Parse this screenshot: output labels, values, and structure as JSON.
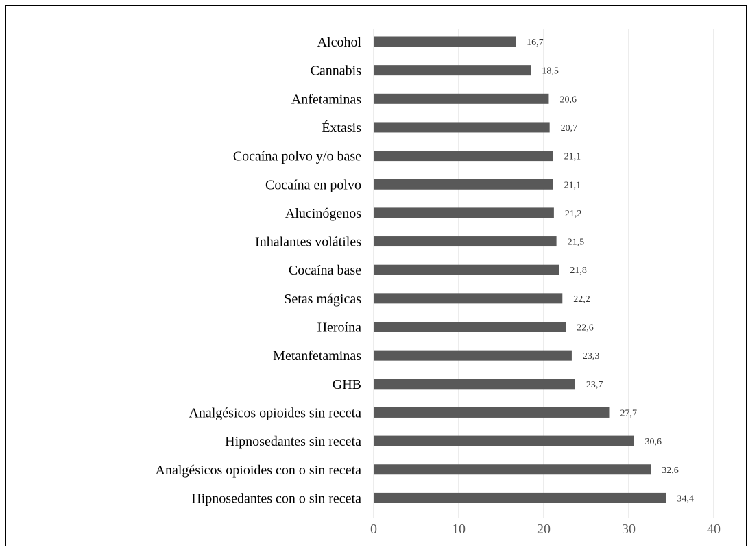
{
  "chart_data": {
    "type": "bar",
    "orientation": "horizontal",
    "title": "",
    "xlabel": "",
    "ylabel": "",
    "xlim": [
      0,
      40
    ],
    "x_ticks": [
      "0",
      "10",
      "20",
      "30",
      "40"
    ],
    "grid": "vertical",
    "bar_color": "#595959",
    "categories": [
      "Alcohol",
      "Cannabis",
      "Anfetaminas",
      "Éxtasis",
      "Cocaína polvo y/o base",
      "Cocaína en polvo",
      "Alucinógenos",
      "Inhalantes volátiles",
      "Cocaína base",
      "Setas mágicas",
      "Heroína",
      "Metanfetaminas",
      "GHB",
      "Analgésicos opioides sin receta",
      "Hipnosedantes sin receta",
      "Analgésicos opioides con o sin receta",
      "Hipnosedantes con o sin receta"
    ],
    "values": [
      16.7,
      18.5,
      20.6,
      20.7,
      21.1,
      21.1,
      21.2,
      21.5,
      21.8,
      22.2,
      22.6,
      23.3,
      23.7,
      27.7,
      30.6,
      32.6,
      34.4
    ],
    "value_labels": [
      "16,7",
      "18,5",
      "20,6",
      "20,7",
      "21,1",
      "21,1",
      "21,2",
      "21,5",
      "21,8",
      "22,2",
      "22,6",
      "23,3",
      "23,7",
      "27,7",
      "30,6",
      "32,6",
      "34,4"
    ]
  }
}
